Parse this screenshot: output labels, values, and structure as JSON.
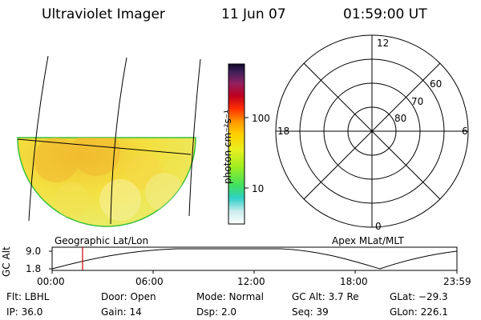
{
  "header": {
    "instrument": "Ultraviolet Imager",
    "date": "11 Jun 07",
    "time": "01:59:00 UT"
  },
  "colorbar": {
    "unit_label": "photon cm⁻²s⁻¹",
    "ticks": [
      "100",
      "10"
    ]
  },
  "polar_plot": {
    "mlt_labels": [
      "12",
      "18",
      "6",
      "0"
    ],
    "lat_labels": [
      "60",
      "70",
      "80"
    ]
  },
  "map_labels": {
    "left": "Geographic Lat/Lon",
    "right": "Apex MLat/MLT"
  },
  "altitude_plot": {
    "ylabel": "GC Alt",
    "y_ticks": [
      "9.0",
      "1.8"
    ],
    "x_ticks": [
      "00:00",
      "06:00",
      "12:00",
      "18:00",
      "23:59"
    ],
    "current_time_marker": "01:59"
  },
  "info": {
    "filter": "Flt: LBHL",
    "ip": "IP: 36.0",
    "door": "Door: Open",
    "gain": "Gain: 14",
    "mode": "Mode: Normal",
    "dsp": "Dsp:    2.0",
    "gc_alt": "GC Alt: 3.7 Re",
    "seq": "Seq: 39",
    "glat": "GLat: −29.3",
    "glon": "GLon: 226.1"
  }
}
